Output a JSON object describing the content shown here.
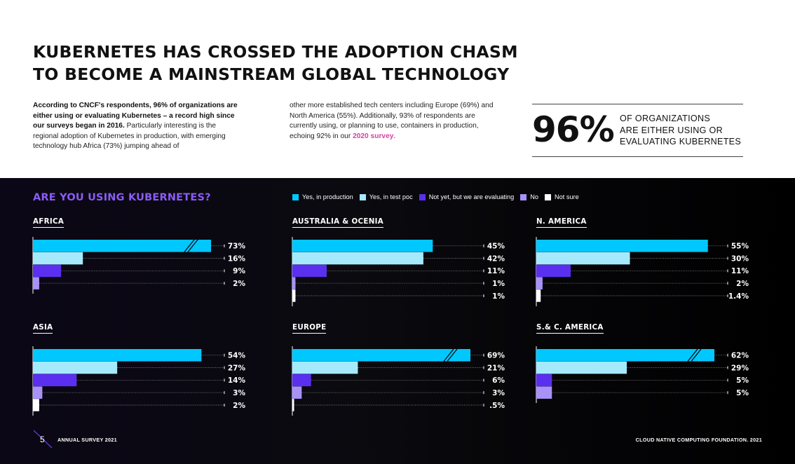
{
  "title": {
    "line1": "KUBERNETES HAS CROSSED THE ADOPTION CHASM",
    "line2": "TO BECOME A MAINSTREAM GLOBAL TECHNOLOGY"
  },
  "intro": {
    "bold": "According to CNCF's respondents, 96% of organizations are either using or evaluating Kubernetes – a record high since our surveys began in 2016.",
    "col1_rest": " Particularly interesting is the regional adoption of Kubernetes in production, with emerging technology hub Africa (73%) jumping ahead of",
    "col2": "other more established tech centers including Europe (69%) and North America (55%). Additionally, 93% of respondents are currently using, or planning to use, containers in production, echoing 92% in our ",
    "link": "2020 survey",
    "col2_end": "."
  },
  "highlight": {
    "value": "96%",
    "caption_line1": "OF ORGANIZATIONS",
    "caption_line2": "ARE EITHER USING OR",
    "caption_line3": "EVALUATING KUBERNETES"
  },
  "question": "ARE YOU USING KUBERNETES?",
  "legend": [
    {
      "label": "Yes, in production",
      "color": "#00c8ff"
    },
    {
      "label": "Yes, in test poc",
      "color": "#a4eafc"
    },
    {
      "label": "Not yet, but we are evaluating",
      "color": "#5b2ff0"
    },
    {
      "label": "No",
      "color": "#a892f8"
    },
    {
      "label": "Not sure",
      "color": "#ffffff"
    }
  ],
  "chart_data": [
    {
      "type": "bar",
      "region": "AFRICA",
      "values": [
        73,
        16,
        9,
        2
      ],
      "labels": [
        "73%",
        "16%",
        "9%",
        "2%"
      ],
      "broken_axis_bar": 0
    },
    {
      "type": "bar",
      "region": "AUSTRALIA & OCENIA",
      "values": [
        45,
        42,
        11,
        1,
        1
      ],
      "labels": [
        "45%",
        "42%",
        "11%",
        "1%",
        "1%"
      ]
    },
    {
      "type": "bar",
      "region": "N. AMERICA",
      "values": [
        55,
        30,
        11,
        2,
        1.4
      ],
      "labels": [
        "55%",
        "30%",
        "11%",
        "2%",
        "1.4%"
      ]
    },
    {
      "type": "bar",
      "region": "ASIA",
      "values": [
        54,
        27,
        14,
        3,
        2
      ],
      "labels": [
        "54%",
        "27%",
        "14%",
        "3%",
        "2%"
      ]
    },
    {
      "type": "bar",
      "region": "EUROPE",
      "values": [
        69,
        21,
        6,
        3,
        0.5
      ],
      "labels": [
        "69%",
        "21%",
        "6%",
        "3%",
        ".5%"
      ],
      "broken_axis_bar": 0
    },
    {
      "type": "bar",
      "region": "S.& C. AMERICA",
      "values": [
        62,
        29,
        5,
        5
      ],
      "labels": [
        "62%",
        "29%",
        "5%",
        "5%"
      ],
      "broken_axis_bar": 0
    }
  ],
  "footer": {
    "page": "5",
    "left": "ANNUAL SURVEY 2021",
    "right": "CLOUD NATIVE COMPUTING FOUNDATION.  2021"
  }
}
